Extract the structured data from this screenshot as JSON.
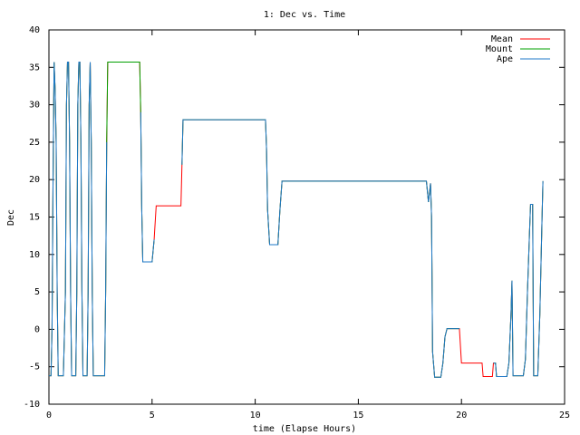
{
  "chart_data": {
    "type": "line",
    "title": "1: Dec vs. Time",
    "x_label": "time (Elapse Hours)",
    "y_label": "Dec",
    "xlim": [
      0,
      25
    ],
    "xticks": [
      0,
      5,
      10,
      15,
      20,
      25
    ],
    "ylim": [
      -10,
      40
    ],
    "yticks": [
      -10,
      -5,
      0,
      5,
      10,
      15,
      20,
      25,
      30,
      35,
      40
    ],
    "legend": "top-right",
    "x": [
      0,
      0.1,
      0.15,
      0.2,
      0.25,
      0.3,
      0.35,
      0.4,
      0.45,
      0.7,
      0.8,
      0.85,
      0.9,
      0.95,
      1.0,
      1.05,
      1.1,
      1.3,
      1.35,
      1.4,
      1.45,
      1.5,
      1.55,
      1.6,
      1.65,
      1.85,
      1.9,
      1.95,
      2.0,
      2.05,
      2.1,
      2.15,
      2.7,
      2.75,
      2.8,
      2.85,
      4.4,
      4.45,
      4.5,
      4.55,
      5.0,
      5.1,
      5.2,
      6.4,
      6.45,
      6.5,
      10.5,
      10.55,
      10.6,
      10.7,
      11.1,
      11.2,
      11.3,
      18.3,
      18.4,
      18.5,
      18.55,
      18.6,
      18.7,
      19.0,
      19.1,
      19.2,
      19.3,
      19.9,
      20.0,
      21.0,
      21.05,
      21.5,
      21.55,
      21.65,
      21.7,
      22.2,
      22.3,
      22.4,
      22.45,
      22.5,
      23.0,
      23.1,
      23.2,
      23.3,
      23.35,
      23.45,
      23.5,
      23.7,
      23.8,
      23.9,
      23.95
    ],
    "series": [
      {
        "name": "Mean",
        "color": "#ff0000",
        "values": [
          -6.2,
          -6.2,
          0,
          20,
          35.7,
          32,
          25,
          5,
          -6.2,
          -6.2,
          5,
          30,
          35.7,
          35.7,
          25,
          5,
          -6.2,
          -6.2,
          5,
          30,
          35.7,
          35.7,
          25,
          5,
          -6.2,
          -6.2,
          5,
          30,
          35.7,
          25,
          5,
          -6.2,
          -6.2,
          5,
          25,
          35.7,
          35.7,
          29,
          16,
          9,
          9,
          12,
          16.5,
          16.5,
          22,
          28,
          28,
          24,
          16,
          11.3,
          11.3,
          16,
          19.8,
          19.8,
          17,
          19.5,
          15,
          -3,
          -6.4,
          -6.4,
          -4.5,
          -1,
          0.1,
          0.1,
          -4.5,
          -4.5,
          -6.3,
          -6.3,
          -4.5,
          -4.5,
          -6.3,
          -6.3,
          -4.5,
          2,
          6.5,
          -6.2,
          -6.2,
          -4,
          5,
          13,
          16.7,
          16.7,
          -6.2,
          -6.2,
          2,
          14,
          19.8
        ]
      },
      {
        "name": "Mount",
        "color": "#00a000",
        "values": [
          -6.2,
          -6.2,
          0,
          20,
          35.7,
          32,
          25,
          5,
          -6.2,
          -6.2,
          5,
          30,
          35.7,
          35.7,
          25,
          5,
          -6.2,
          -6.2,
          5,
          30,
          35.7,
          35.7,
          25,
          5,
          -6.2,
          -6.2,
          5,
          30,
          35.7,
          25,
          5,
          -6.2,
          -6.2,
          5,
          25,
          35.7,
          35.7,
          29,
          16,
          9,
          9,
          12,
          null,
          null,
          22,
          28,
          28,
          24,
          16,
          11.3,
          11.3,
          16,
          19.8,
          19.8,
          17,
          19.5,
          15,
          -3,
          -6.4,
          -6.4,
          -4.5,
          -1,
          0.1,
          0.1,
          null,
          null,
          null,
          null,
          -4.5,
          -4.5,
          -6.3,
          -6.3,
          -4.5,
          2,
          6.5,
          -6.2,
          -6.2,
          -4,
          5,
          13,
          16.7,
          16.7,
          -6.2,
          -6.2,
          2,
          14,
          19.8
        ]
      },
      {
        "name": "Ape",
        "color": "#1f78c8",
        "values": [
          -6.2,
          -6.2,
          0,
          20,
          35.7,
          32,
          25,
          5,
          -6.2,
          -6.2,
          5,
          30,
          35.7,
          35.7,
          25,
          5,
          -6.2,
          -6.2,
          5,
          30,
          35.7,
          35.7,
          25,
          5,
          -6.2,
          -6.2,
          5,
          30,
          35.7,
          25,
          5,
          -6.2,
          -6.2,
          5,
          25,
          null,
          null,
          29,
          16,
          9,
          9,
          12,
          null,
          null,
          22,
          28,
          28,
          24,
          16,
          11.3,
          11.3,
          16,
          19.8,
          19.8,
          17,
          19.5,
          15,
          -3,
          -6.4,
          -6.4,
          -4.5,
          -1,
          0.1,
          0.1,
          null,
          null,
          null,
          null,
          -4.5,
          -4.5,
          -6.3,
          -6.3,
          -4.5,
          2,
          6.5,
          -6.2,
          -6.2,
          -4,
          5,
          13,
          16.7,
          16.7,
          -6.2,
          -6.2,
          2,
          14,
          19.8
        ]
      }
    ]
  }
}
